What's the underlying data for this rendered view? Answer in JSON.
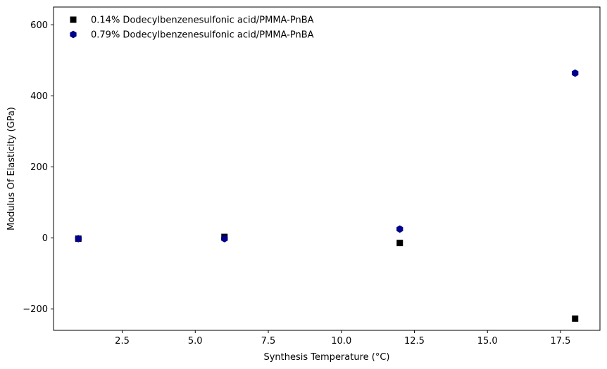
{
  "chart_data": {
    "type": "scatter",
    "title": "",
    "xlabel": "Synthesis Temperature (°C)",
    "ylabel": "Modulus Of Elasticity (GPa)",
    "xlim": [
      0.15,
      18.85
    ],
    "ylim": [
      -260,
      650
    ],
    "xticks": [
      2.5,
      5.0,
      7.5,
      10.0,
      12.5,
      15.0,
      17.5
    ],
    "xtick_labels": [
      "2.5",
      "5.0",
      "7.5",
      "10.0",
      "12.5",
      "15.0",
      "17.5"
    ],
    "yticks": [
      -200,
      0,
      200,
      400,
      600
    ],
    "ytick_labels": [
      "−200",
      "0",
      "200",
      "400",
      "600"
    ],
    "grid": false,
    "legend_position": "top-left",
    "series": [
      {
        "name": "0.14% Dodecylbenzenesulfonic acid/PMMA-PnBA",
        "marker": "square",
        "color": "#000000",
        "x": [
          1,
          6,
          12,
          18
        ],
        "y": [
          -2,
          3,
          -14,
          -227
        ]
      },
      {
        "name": "0.79% Dodecylbenzenesulfonic acid/PMMA-PnBA",
        "marker": "hexagon",
        "color": "#00008b",
        "x": [
          1,
          6,
          12,
          18
        ],
        "y": [
          -2,
          -2,
          25,
          464
        ]
      }
    ]
  }
}
